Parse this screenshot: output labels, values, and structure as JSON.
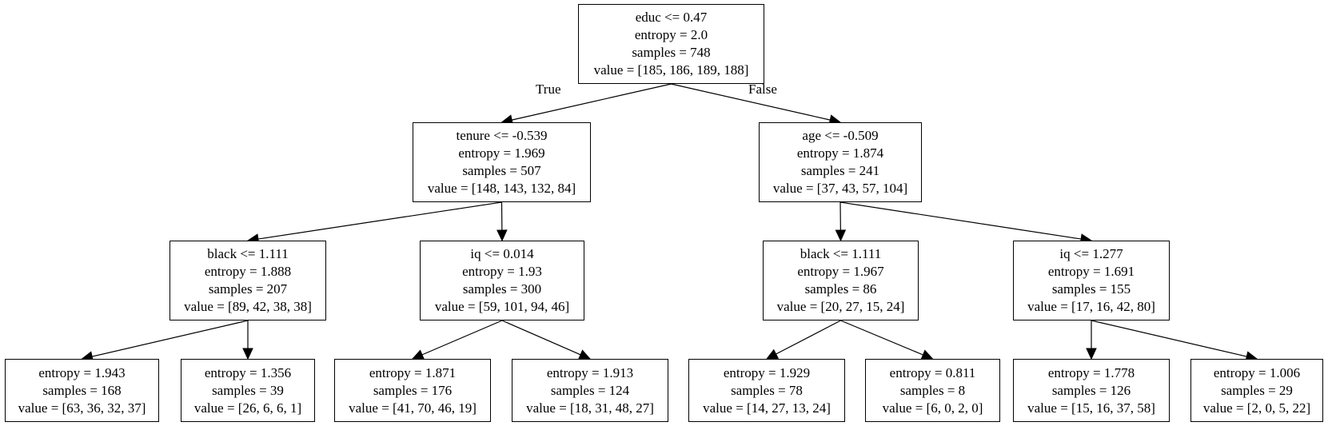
{
  "tree": {
    "nodes": [
      {
        "id": "n0",
        "lines": [
          "educ <= 0.47",
          "entropy = 2.0",
          "samples = 748",
          "value = [185, 186, 189, 188]"
        ]
      },
      {
        "id": "n1",
        "lines": [
          "tenure <= -0.539",
          "entropy = 1.969",
          "samples = 507",
          "value = [148, 143, 132, 84]"
        ]
      },
      {
        "id": "n2",
        "lines": [
          "age <= -0.509",
          "entropy = 1.874",
          "samples = 241",
          "value = [37, 43, 57, 104]"
        ]
      },
      {
        "id": "n3",
        "lines": [
          "black <= 1.111",
          "entropy = 1.888",
          "samples = 207",
          "value = [89, 42, 38, 38]"
        ]
      },
      {
        "id": "n4",
        "lines": [
          "iq <= 0.014",
          "entropy = 1.93",
          "samples = 300",
          "value = [59, 101, 94, 46]"
        ]
      },
      {
        "id": "n5",
        "lines": [
          "black <= 1.111",
          "entropy = 1.967",
          "samples = 86",
          "value = [20, 27, 15, 24]"
        ]
      },
      {
        "id": "n6",
        "lines": [
          "iq <= 1.277",
          "entropy = 1.691",
          "samples = 155",
          "value = [17, 16, 42, 80]"
        ]
      },
      {
        "id": "n7",
        "lines": [
          "entropy = 1.943",
          "samples = 168",
          "value = [63, 36, 32, 37]"
        ]
      },
      {
        "id": "n8",
        "lines": [
          "entropy = 1.356",
          "samples = 39",
          "value = [26, 6, 6, 1]"
        ]
      },
      {
        "id": "n9",
        "lines": [
          "entropy = 1.871",
          "samples = 176",
          "value = [41, 70, 46, 19]"
        ]
      },
      {
        "id": "n10",
        "lines": [
          "entropy = 1.913",
          "samples = 124",
          "value = [18, 31, 48, 27]"
        ]
      },
      {
        "id": "n11",
        "lines": [
          "entropy = 1.929",
          "samples = 78",
          "value = [14, 27, 13, 24]"
        ]
      },
      {
        "id": "n12",
        "lines": [
          "entropy = 0.811",
          "samples = 8",
          "value = [6, 0, 2, 0]"
        ]
      },
      {
        "id": "n13",
        "lines": [
          "entropy = 1.778",
          "samples = 126",
          "value = [15, 16, 37, 58]"
        ]
      },
      {
        "id": "n14",
        "lines": [
          "entropy = 1.006",
          "samples = 29",
          "value = [2, 0, 5, 22]"
        ]
      }
    ],
    "edges": [
      {
        "from": "n0",
        "to": "n1",
        "label": "True"
      },
      {
        "from": "n0",
        "to": "n2",
        "label": "False"
      },
      {
        "from": "n1",
        "to": "n3"
      },
      {
        "from": "n1",
        "to": "n4"
      },
      {
        "from": "n2",
        "to": "n5"
      },
      {
        "from": "n2",
        "to": "n6"
      },
      {
        "from": "n3",
        "to": "n7"
      },
      {
        "from": "n3",
        "to": "n8"
      },
      {
        "from": "n4",
        "to": "n9"
      },
      {
        "from": "n4",
        "to": "n10"
      },
      {
        "from": "n5",
        "to": "n11"
      },
      {
        "from": "n5",
        "to": "n12"
      },
      {
        "from": "n6",
        "to": "n13"
      },
      {
        "from": "n6",
        "to": "n14"
      }
    ]
  }
}
